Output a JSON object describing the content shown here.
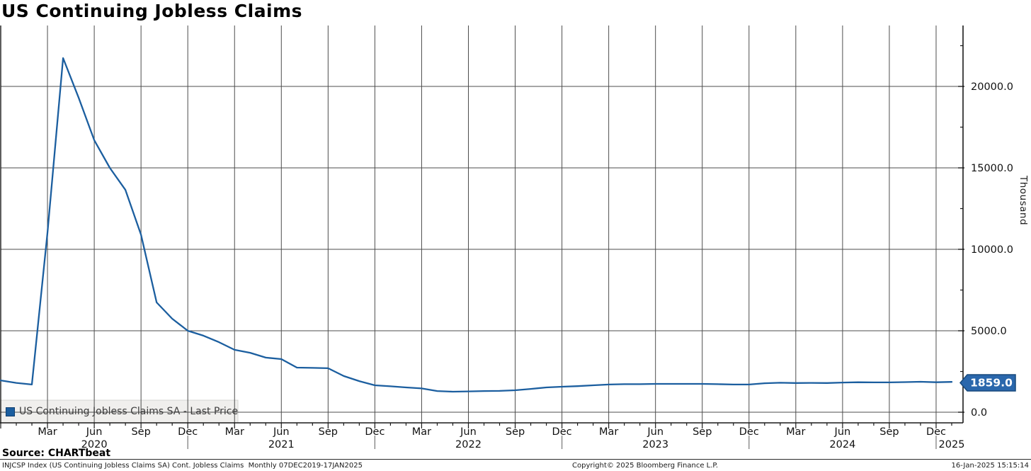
{
  "title": "US Continuing Jobless Claims",
  "legend": {
    "label": "US Continuing Jobless Claims SA - Last Price"
  },
  "last_price_badge": "1859.0",
  "y_axis": {
    "unit_label": "Thousand",
    "ticks": [
      {
        "value": 0,
        "label": "0.0"
      },
      {
        "value": 5000,
        "label": "5000.0"
      },
      {
        "value": 10000,
        "label": "10000.0"
      },
      {
        "value": 15000,
        "label": "15000.0"
      },
      {
        "value": 20000,
        "label": "20000.0"
      }
    ],
    "minor_step": 2500
  },
  "x_axis": {
    "month_labels": {
      "0": "Dec",
      "3": "Mar",
      "6": "Jun",
      "9": "Sep"
    },
    "years": [
      {
        "label": "2020",
        "month_index": 6
      },
      {
        "label": "2021",
        "month_index": 18
      },
      {
        "label": "2022",
        "month_index": 30
      },
      {
        "label": "2023",
        "month_index": 42
      },
      {
        "label": "2024",
        "month_index": 54
      },
      {
        "label": "2025",
        "month_index": 61
      }
    ]
  },
  "footer": {
    "source": "Source: CHARTbeat",
    "info": "INJCSP Index (US Continuing Jobless Claims SA) Cont. Jobless Claims  Monthly 07DEC2019-17JAN2025",
    "copyright": "Copyright© 2025 Bloomberg Finance L.P.",
    "timestamp": "16-Jan-2025 15:15:14"
  },
  "colors": {
    "line": "#1b5e9f",
    "badge_fill": "#2a67ac",
    "badge_border": "#17497c",
    "gridline": "#4d4d4d",
    "axis": "#1a1a1a",
    "legend_bg": "#f0efed",
    "legend_border": "#d4d4d2"
  },
  "chart_data": {
    "type": "line",
    "title": "US Continuing Jobless Claims",
    "series_name": "US Continuing Jobless Claims SA - Last Price",
    "unit": "Thousand",
    "frequency": "monthly",
    "x_start": "2019-12",
    "x_end": "2025-01",
    "ylim": [
      0,
      23000
    ],
    "y_gridlines": [
      0,
      5000,
      10000,
      15000,
      20000
    ],
    "grid": true,
    "legend_position": "bottom-left",
    "last_price": 1859.0,
    "values": [
      1950,
      1800,
      1700,
      11000,
      21740,
      19300,
      16700,
      15000,
      13650,
      10900,
      6740,
      5740,
      5000,
      4700,
      4300,
      3830,
      3650,
      3350,
      3260,
      2740,
      2720,
      2700,
      2220,
      1910,
      1650,
      1590,
      1520,
      1460,
      1300,
      1260,
      1280,
      1300,
      1310,
      1350,
      1430,
      1520,
      1565,
      1600,
      1650,
      1700,
      1720,
      1720,
      1740,
      1740,
      1740,
      1740,
      1720,
      1700,
      1700,
      1780,
      1810,
      1790,
      1800,
      1790,
      1820,
      1840,
      1830,
      1830,
      1850,
      1870,
      1840,
      1859
    ]
  }
}
